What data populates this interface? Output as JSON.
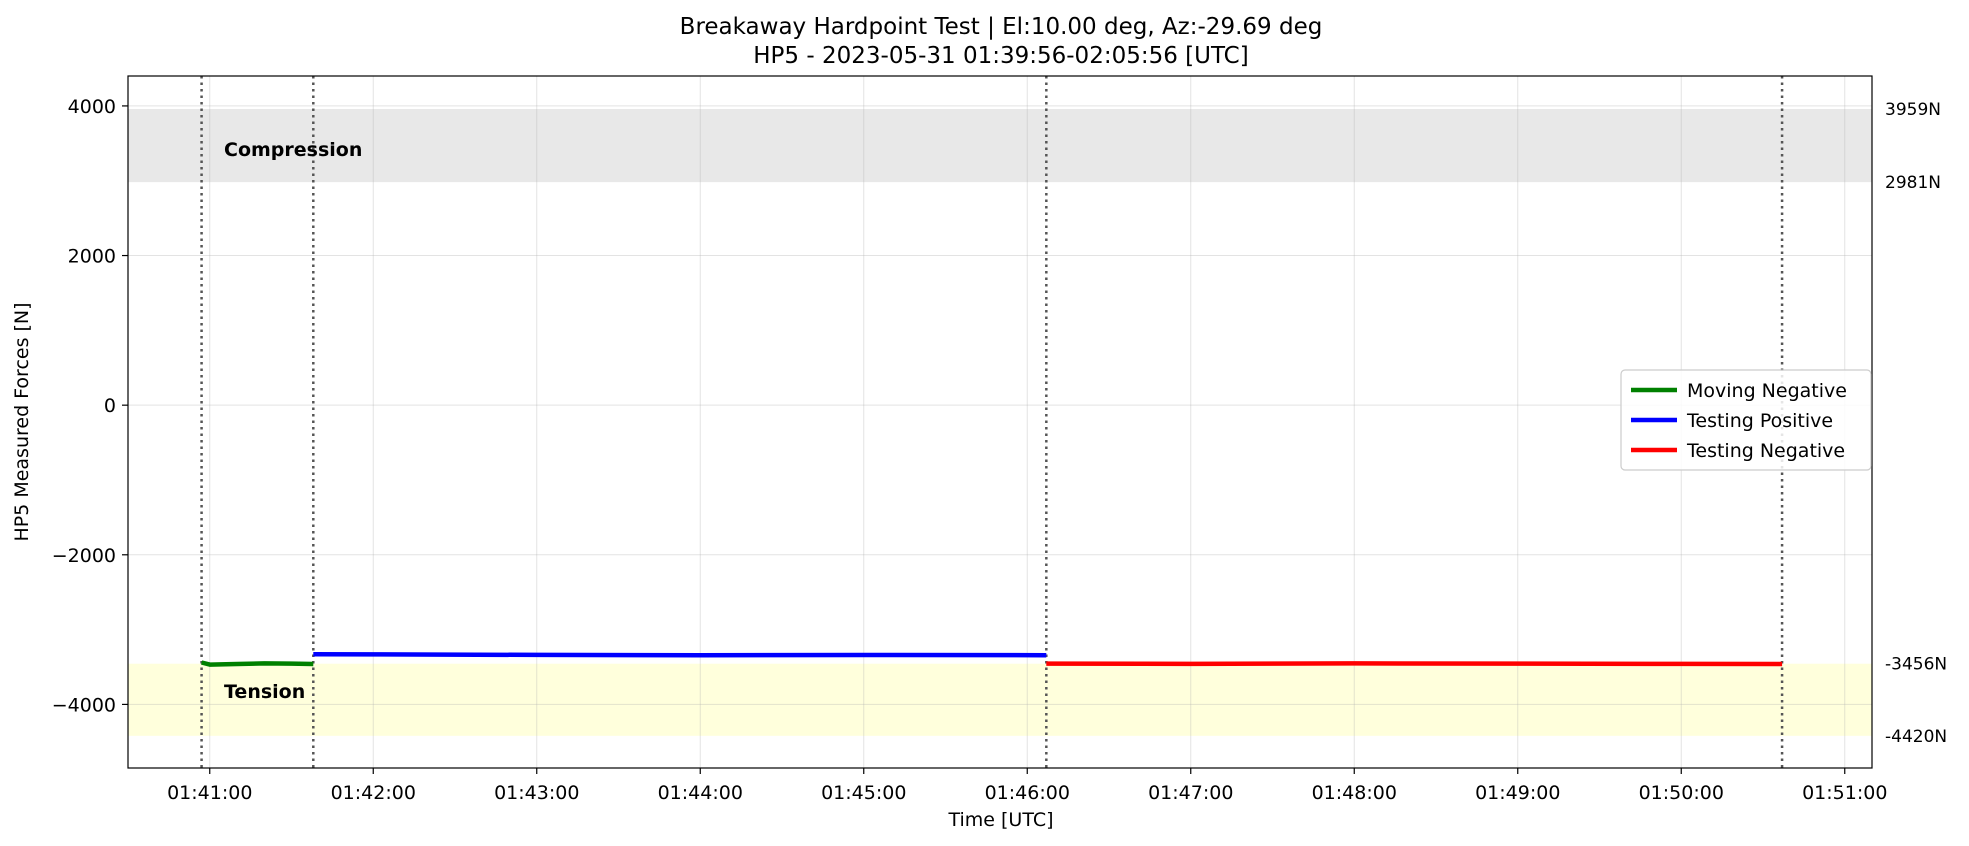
{
  "chart_data": {
    "type": "line",
    "title": "Breakaway Hardpoint Test | El:10.00 deg, Az:-29.69 deg",
    "subtitle": "HP5 - 2023-05-31 01:39:56-02:05:56 [UTC]",
    "xlabel": "Time [UTC]",
    "ylabel": "HP5 Measured Forces [N]",
    "xlim": [
      "01:40:30",
      "01:51:10"
    ],
    "ylim": [
      -4850,
      4400
    ],
    "x_ticks": [
      "01:41:00",
      "01:42:00",
      "01:43:00",
      "01:44:00",
      "01:45:00",
      "01:46:00",
      "01:47:00",
      "01:48:00",
      "01:49:00",
      "01:50:00",
      "01:51:00"
    ],
    "y_ticks": [
      4000,
      2000,
      0,
      -2000,
      -4000
    ],
    "y_tick_labels": [
      "4000",
      "2000",
      "0",
      "−2000",
      "−4000"
    ],
    "grid": true,
    "legend_position": "center-right",
    "series": [
      {
        "name": "Moving Negative",
        "color": "#008000",
        "x": [
          "01:40:57",
          "01:41:00",
          "01:41:10",
          "01:41:20",
          "01:41:30",
          "01:41:38"
        ],
        "y": [
          -3440,
          -3468,
          -3460,
          -3452,
          -3455,
          -3460
        ]
      },
      {
        "name": "Testing Positive",
        "color": "#0000ff",
        "x": [
          "01:41:38",
          "01:42:00",
          "01:43:00",
          "01:44:00",
          "01:45:00",
          "01:46:07"
        ],
        "y": [
          -3330,
          -3332,
          -3338,
          -3342,
          -3340,
          -3342
        ]
      },
      {
        "name": "Testing Negative",
        "color": "#ff0000",
        "x": [
          "01:46:07",
          "01:47:00",
          "01:48:00",
          "01:49:00",
          "01:50:00",
          "01:50:37"
        ],
        "y": [
          -3455,
          -3458,
          -3452,
          -3455,
          -3458,
          -3460
        ]
      }
    ],
    "bands": [
      {
        "name": "Compression",
        "min": 2981,
        "max": 3959,
        "color": "#e8e8e8"
      },
      {
        "name": "Tension",
        "min": -4420,
        "max": -3456,
        "color": "#ffffdc"
      }
    ],
    "limit_labels": [
      "3959N",
      "2981N",
      "-3456N",
      "-4420N"
    ],
    "limit_values": [
      3959,
      2981,
      -3456,
      -4420
    ],
    "vlines": [
      "01:40:57",
      "01:41:38",
      "01:46:07",
      "01:50:37"
    ]
  }
}
